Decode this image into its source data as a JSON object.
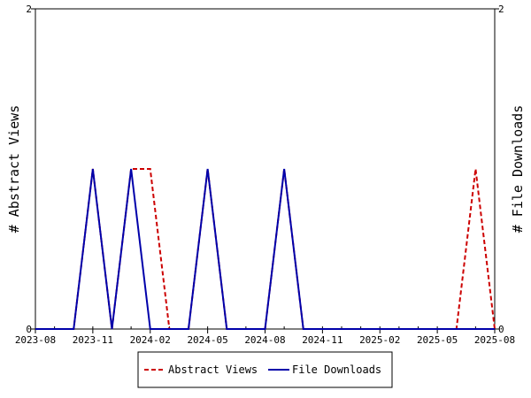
{
  "chart_data": {
    "type": "line",
    "x_ticks": [
      "2023-08",
      "2023-11",
      "2024-02",
      "2024-05",
      "2024-08",
      "2024-11",
      "2025-02",
      "2025-05",
      "2025-08"
    ],
    "x_range": [
      "2023-08",
      "2025-08"
    ],
    "y_left": {
      "label": "# Abstract Views",
      "range": [
        0,
        2
      ],
      "ticks": [
        "0",
        "2"
      ]
    },
    "y_right": {
      "label": "# File Downloads",
      "range": [
        0,
        2
      ],
      "ticks": [
        "0",
        "2"
      ]
    },
    "grid": false,
    "legend_position": "bottom-center",
    "series": [
      {
        "name": "Abstract Views",
        "axis": "left",
        "color": "#cc0000",
        "style": "dashed",
        "points": [
          [
            "2023-08",
            0
          ],
          [
            "2023-09",
            0
          ],
          [
            "2023-10",
            0
          ],
          [
            "2023-11",
            1
          ],
          [
            "2023-12",
            0
          ],
          [
            "2024-01",
            1
          ],
          [
            "2024-02",
            1
          ],
          [
            "2024-03",
            0
          ],
          [
            "2024-04",
            0
          ],
          [
            "2024-05",
            1
          ],
          [
            "2024-06",
            0
          ],
          [
            "2024-07",
            0
          ],
          [
            "2024-08",
            0
          ],
          [
            "2024-09",
            1
          ],
          [
            "2024-10",
            0
          ],
          [
            "2024-11",
            0
          ],
          [
            "2024-12",
            0
          ],
          [
            "2025-01",
            0
          ],
          [
            "2025-02",
            0
          ],
          [
            "2025-03",
            0
          ],
          [
            "2025-04",
            0
          ],
          [
            "2025-05",
            0
          ],
          [
            "2025-06",
            0
          ],
          [
            "2025-07",
            1
          ],
          [
            "2025-08",
            0
          ]
        ]
      },
      {
        "name": "File Downloads",
        "axis": "right",
        "color": "#0000aa",
        "style": "solid",
        "points": [
          [
            "2023-08",
            0
          ],
          [
            "2023-09",
            0
          ],
          [
            "2023-10",
            0
          ],
          [
            "2023-11",
            1
          ],
          [
            "2023-12",
            0
          ],
          [
            "2024-01",
            1
          ],
          [
            "2024-02",
            0
          ],
          [
            "2024-03",
            0
          ],
          [
            "2024-04",
            0
          ],
          [
            "2024-05",
            1
          ],
          [
            "2024-06",
            0
          ],
          [
            "2024-07",
            0
          ],
          [
            "2024-08",
            0
          ],
          [
            "2024-09",
            1
          ],
          [
            "2024-10",
            0
          ],
          [
            "2024-11",
            0
          ],
          [
            "2024-12",
            0
          ],
          [
            "2025-01",
            0
          ],
          [
            "2025-02",
            0
          ],
          [
            "2025-03",
            0
          ],
          [
            "2025-04",
            0
          ],
          [
            "2025-05",
            0
          ],
          [
            "2025-06",
            0
          ],
          [
            "2025-07",
            0
          ],
          [
            "2025-08",
            0
          ]
        ]
      }
    ]
  }
}
